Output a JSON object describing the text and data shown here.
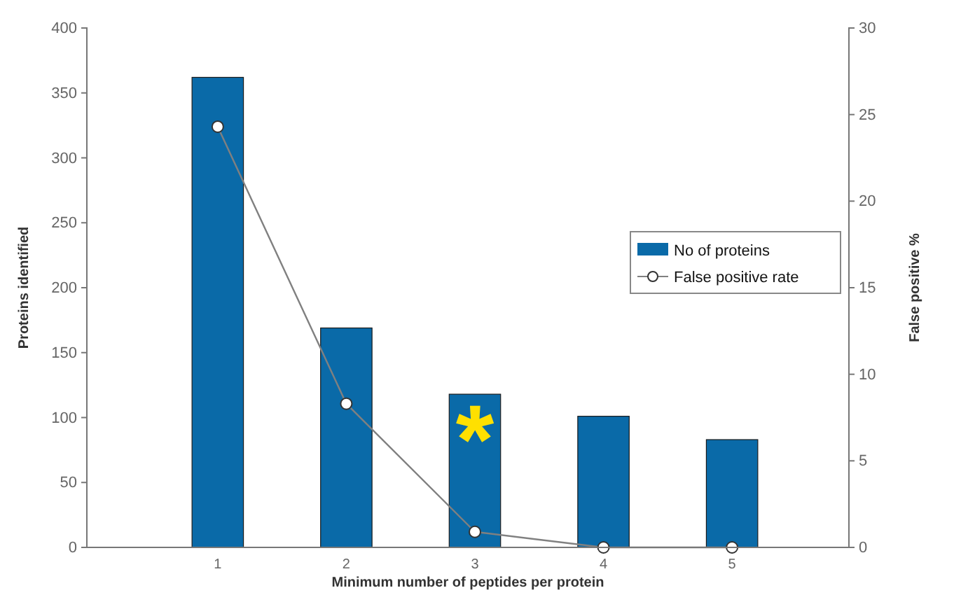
{
  "chart_data": {
    "type": "bar",
    "xlabel": "Minimum number of peptides per protein",
    "ylabel": "Proteins identified",
    "y2label": "False positive %",
    "categories": [
      "1",
      "2",
      "3",
      "4",
      "5"
    ],
    "series": [
      {
        "name": "No of proteins",
        "color": "#0a6aa8",
        "values": [
          362,
          169,
          118,
          101,
          83
        ]
      },
      {
        "name": "False positive rate",
        "type": "line",
        "axis": "y2",
        "color": "#808080",
        "marker": "circle",
        "values": [
          24.3,
          8.3,
          0.9,
          0,
          0
        ]
      }
    ],
    "ylim": [
      0,
      400
    ],
    "yticks": [
      0,
      50,
      100,
      150,
      200,
      250,
      300,
      350,
      400
    ],
    "y2lim": [
      0,
      30
    ],
    "y2ticks": [
      0,
      5,
      10,
      15,
      20,
      25,
      30
    ],
    "annotations": [
      "*"
    ],
    "grid": false,
    "legend": "right"
  }
}
